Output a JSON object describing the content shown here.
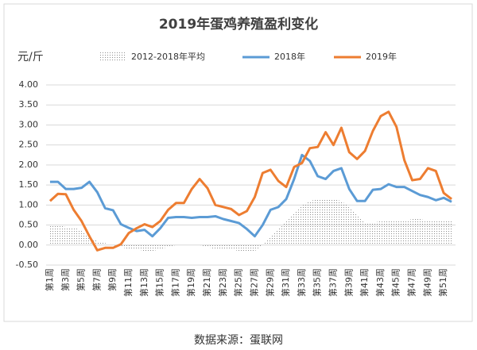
{
  "chart_data": {
    "type": "line",
    "title": "2019年蛋鸡养殖盈利变化",
    "y_label": "元/斤",
    "source": "数据来源：蛋联网",
    "categories": [
      "第1周",
      null,
      "第3周",
      null,
      "第5周",
      null,
      "第7周",
      null,
      "第9周",
      null,
      "第11周",
      null,
      "第13周",
      null,
      "第15周",
      null,
      "第17周",
      null,
      "第19周",
      null,
      "第21周",
      null,
      "第23周",
      null,
      "第25周",
      null,
      "第27周",
      null,
      "第29周",
      null,
      "第31周",
      null,
      "第33周",
      null,
      "第35周",
      null,
      "第37周",
      null,
      "第39周",
      null,
      "第41周",
      null,
      "第43周",
      null,
      "第45周",
      null,
      "第47周",
      null,
      "第49周",
      null,
      "第51周",
      null
    ],
    "ylim": [
      -0.5,
      4
    ],
    "yticks": [
      {
        "value": -0.5,
        "label": "-0.50"
      },
      {
        "value": 0,
        "label": "0.00"
      },
      {
        "value": 0.5,
        "label": "0.50"
      },
      {
        "value": 1,
        "label": "1.00"
      },
      {
        "value": 1.5,
        "label": "1.50"
      },
      {
        "value": 2,
        "label": "2.00"
      },
      {
        "value": 2.5,
        "label": "2.50"
      },
      {
        "value": 3,
        "label": "3.00"
      },
      {
        "value": 3.5,
        "label": "3.50"
      },
      {
        "value": 4,
        "label": "4.00"
      }
    ],
    "grid": true,
    "series": [
      {
        "name": "2012-2018年平均",
        "kind": "area",
        "color": "#a6a6a6",
        "values": [
          0.5,
          0.5,
          0.45,
          0.45,
          0.35,
          0.2,
          0.1,
          0.05,
          0,
          -0.05,
          -0.1,
          -0.1,
          -0.15,
          -0.15,
          -0.1,
          -0.05,
          0,
          0,
          0,
          0,
          -0.05,
          -0.1,
          -0.1,
          -0.1,
          -0.15,
          -0.15,
          -0.15,
          0,
          0.2,
          0.4,
          0.6,
          0.8,
          1,
          1.1,
          1.15,
          1.15,
          1.15,
          1.1,
          0.95,
          0.75,
          0.55,
          0.55,
          0.6,
          0.6,
          0.6,
          0.6,
          0.65,
          0.65,
          0.6,
          0.6,
          0.6,
          0.6
        ]
      },
      {
        "name": "2018年",
        "kind": "line",
        "color": "#5b9bd5",
        "values": [
          1.58,
          1.58,
          1.4,
          1.4,
          1.43,
          1.58,
          1.32,
          0.92,
          0.87,
          0.52,
          0.43,
          0.35,
          0.38,
          0.22,
          0.42,
          0.68,
          0.7,
          0.7,
          0.68,
          0.7,
          0.7,
          0.72,
          0.65,
          0.6,
          0.55,
          0.4,
          0.22,
          0.5,
          0.88,
          0.95,
          1.15,
          1.65,
          2.25,
          2.1,
          1.72,
          1.65,
          1.85,
          1.92,
          1.4,
          1.1,
          1.1,
          1.38,
          1.4,
          1.52,
          1.45,
          1.45,
          1.35,
          1.25,
          1.2,
          1.12,
          1.18,
          1.08
        ]
      },
      {
        "name": "2019年",
        "kind": "line",
        "color": "#ed7d31",
        "values": [
          1.1,
          1.28,
          1.27,
          0.88,
          0.6,
          0.22,
          -0.13,
          -0.07,
          -0.07,
          0.02,
          0.3,
          0.42,
          0.52,
          0.45,
          0.6,
          0.88,
          1.05,
          1.05,
          1.4,
          1.65,
          1.42,
          1,
          0.95,
          0.9,
          0.75,
          0.85,
          1.2,
          1.8,
          1.88,
          1.6,
          1.45,
          1.95,
          2.05,
          2.42,
          2.45,
          2.82,
          2.5,
          2.93,
          2.32,
          2.15,
          2.35,
          2.85,
          3.22,
          3.33,
          2.95,
          2.12,
          1.62,
          1.65,
          1.92,
          1.85,
          1.3,
          1.15
        ]
      }
    ]
  }
}
